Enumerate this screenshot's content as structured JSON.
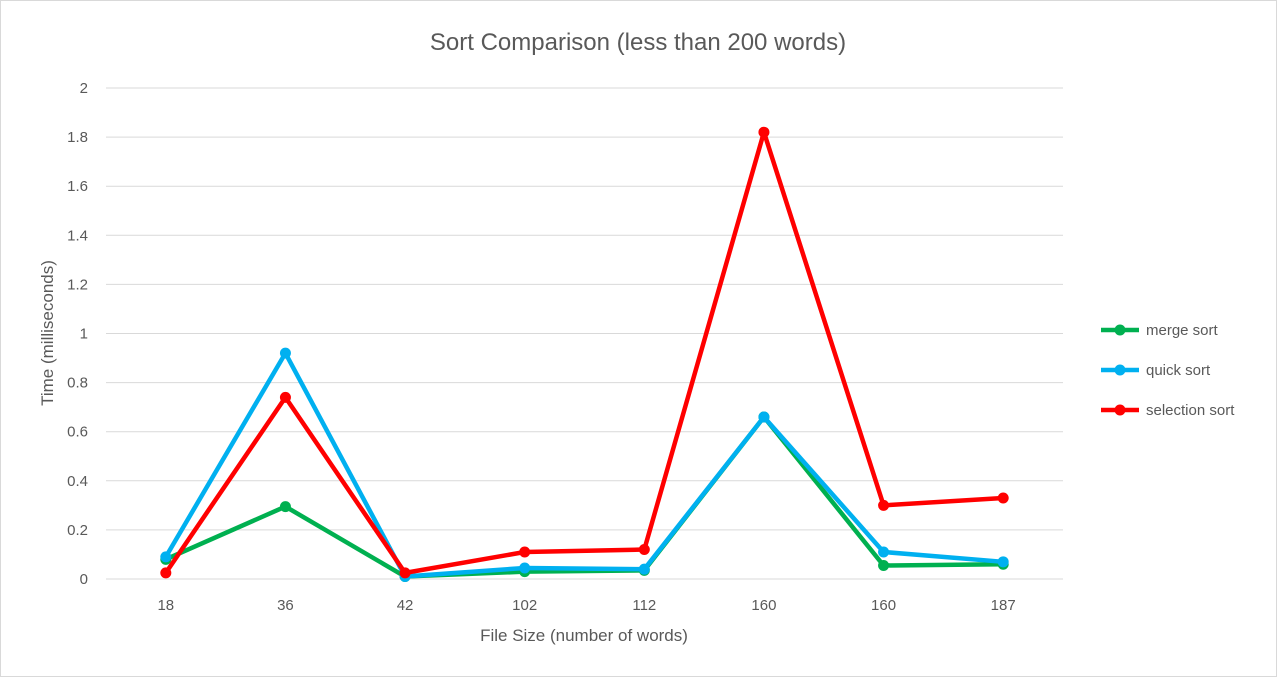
{
  "chart_data": {
    "type": "line",
    "title": "Sort Comparison (less than 200 words)",
    "xlabel": "File Size (number of words)",
    "ylabel": "Time (milliseconds)",
    "categories": [
      "18",
      "36",
      "42",
      "102",
      "112",
      "160",
      "160",
      "187"
    ],
    "ylim": [
      0,
      2
    ],
    "yticks": [
      "0",
      "0.2",
      "0.4",
      "0.6",
      "0.8",
      "1",
      "1.2",
      "1.4",
      "1.6",
      "1.8",
      "2"
    ],
    "grid": true,
    "legend_position": "right",
    "series": [
      {
        "name": "merge sort",
        "color": "#00b050",
        "values": [
          0.08,
          0.295,
          0.01,
          0.03,
          0.035,
          0.66,
          0.055,
          0.06
        ]
      },
      {
        "name": "quick sort",
        "color": "#00b0f0",
        "values": [
          0.09,
          0.92,
          0.01,
          0.045,
          0.04,
          0.66,
          0.11,
          0.07
        ]
      },
      {
        "name": "selection sort",
        "color": "#ff0000",
        "values": [
          0.025,
          0.74,
          0.025,
          0.11,
          0.12,
          1.82,
          0.3,
          0.33
        ]
      }
    ]
  }
}
